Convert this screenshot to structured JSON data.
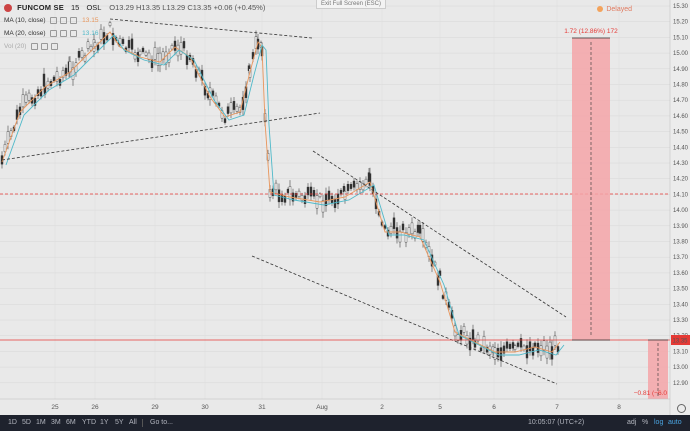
{
  "header": {
    "symbol": "FUNCOM SE",
    "interval": "15",
    "exchange": "OSL",
    "open_label": "O",
    "open": "13.29",
    "high_label": "H",
    "high": "13.35",
    "low_label": "L",
    "low": "13.29",
    "close_label": "C",
    "close": "13.35",
    "change": "+0.06 (+0.45%)"
  },
  "indicators": [
    {
      "label": "MA (10, close)",
      "value": "13.15",
      "color": "#e8955b"
    },
    {
      "label": "MA (20, close)",
      "value": "13.16",
      "color": "#4fb9c9"
    },
    {
      "label": "Vol (20)",
      "value": ""
    }
  ],
  "exit_fullscreen": "Exit Full Screen (ESC)",
  "delayed": "Delayed",
  "price_axis": [
    "15.30",
    "15.20",
    "15.10",
    "15.00",
    "14.90",
    "14.80",
    "14.70",
    "14.60",
    "14.50",
    "14.40",
    "14.30",
    "14.20",
    "14.10",
    "14.00",
    "13.90",
    "13.80",
    "13.70",
    "13.60",
    "13.50",
    "13.40",
    "13.30",
    "13.20",
    "13.10",
    "13.00",
    "12.90"
  ],
  "current_price_tag": "13.35",
  "time_axis": [
    "25",
    "26",
    "29",
    "30",
    "31",
    "Aug",
    "2",
    "5",
    "6",
    "7",
    "8"
  ],
  "annotations": {
    "upper_target": "1.72 (12.86%) 172",
    "lower_target": "−0.81 (−6.0"
  },
  "colors": {
    "down_box": "#f4a5a8",
    "accent_red": "#e53935",
    "ma10": "#e8955b",
    "ma20": "#4fb9c9"
  },
  "bottom_bar": {
    "ranges": [
      "1D",
      "5D",
      "1M",
      "3M",
      "6M",
      "YTD",
      "1Y",
      "5Y",
      "All"
    ],
    "goto": "Go to...",
    "time": "10:05:07 (UTC+2)",
    "adj": "adj",
    "percent": "%",
    "log": "log",
    "auto": "auto"
  }
}
